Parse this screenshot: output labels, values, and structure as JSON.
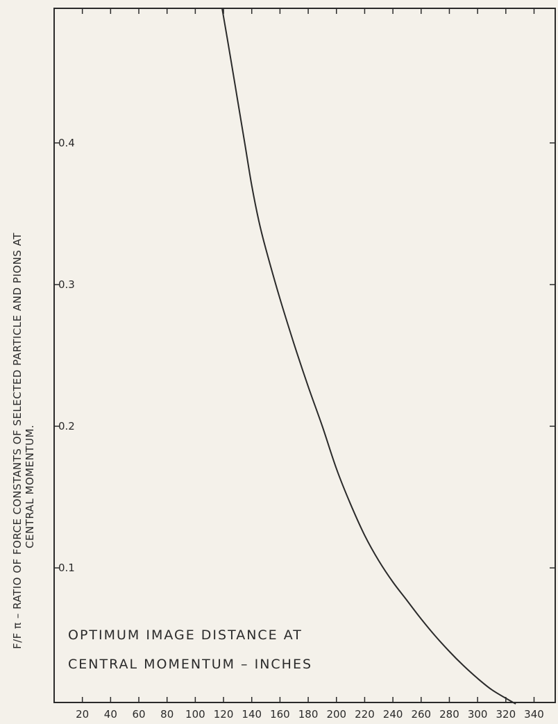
{
  "chart_data": {
    "type": "line",
    "title": "",
    "ylabel_line1": "F/F π – RATIO OF FORCE CONSTANTS OF SELECTED PARTICLE AND PIONS AT",
    "ylabel_line2": "CENTRAL MOMENTUM.",
    "annotation_line1": "OPTIMUM   IMAGE   DISTANCE  AT",
    "annotation_line2": "CENTRAL   MOMENTUM – INCHES",
    "xlim": [
      0,
      355
    ],
    "ylim": [
      0.005,
      0.495
    ],
    "x_ticks": [
      20,
      40,
      60,
      80,
      100,
      120,
      140,
      160,
      180,
      200,
      220,
      240,
      260,
      280,
      300,
      320,
      340
    ],
    "x_tick_labels": [
      "20",
      "40",
      "60",
      "80",
      "100",
      "120",
      "140",
      "160",
      "180",
      "200",
      "220",
      "240",
      "260",
      "280",
      "300",
      "320",
      "340"
    ],
    "y_ticks": [
      0.1,
      0.2,
      0.3,
      0.4
    ],
    "y_tick_labels": [
      "0.1",
      "0.2",
      "0.3",
      "0.4"
    ],
    "grid": false,
    "series": [
      {
        "x": [
          119,
          125,
          130,
          135,
          140,
          145,
          150,
          160,
          170,
          180,
          190,
          200,
          210,
          220,
          230,
          240,
          250,
          260,
          270,
          280,
          290,
          300,
          310,
          320,
          327
        ],
        "y": [
          0.495,
          0.46,
          0.43,
          0.4,
          0.37,
          0.345,
          0.325,
          0.29,
          0.258,
          0.228,
          0.2,
          0.17,
          0.145,
          0.123,
          0.105,
          0.09,
          0.077,
          0.064,
          0.052,
          0.041,
          0.031,
          0.022,
          0.014,
          0.008,
          0.004
        ]
      }
    ]
  }
}
